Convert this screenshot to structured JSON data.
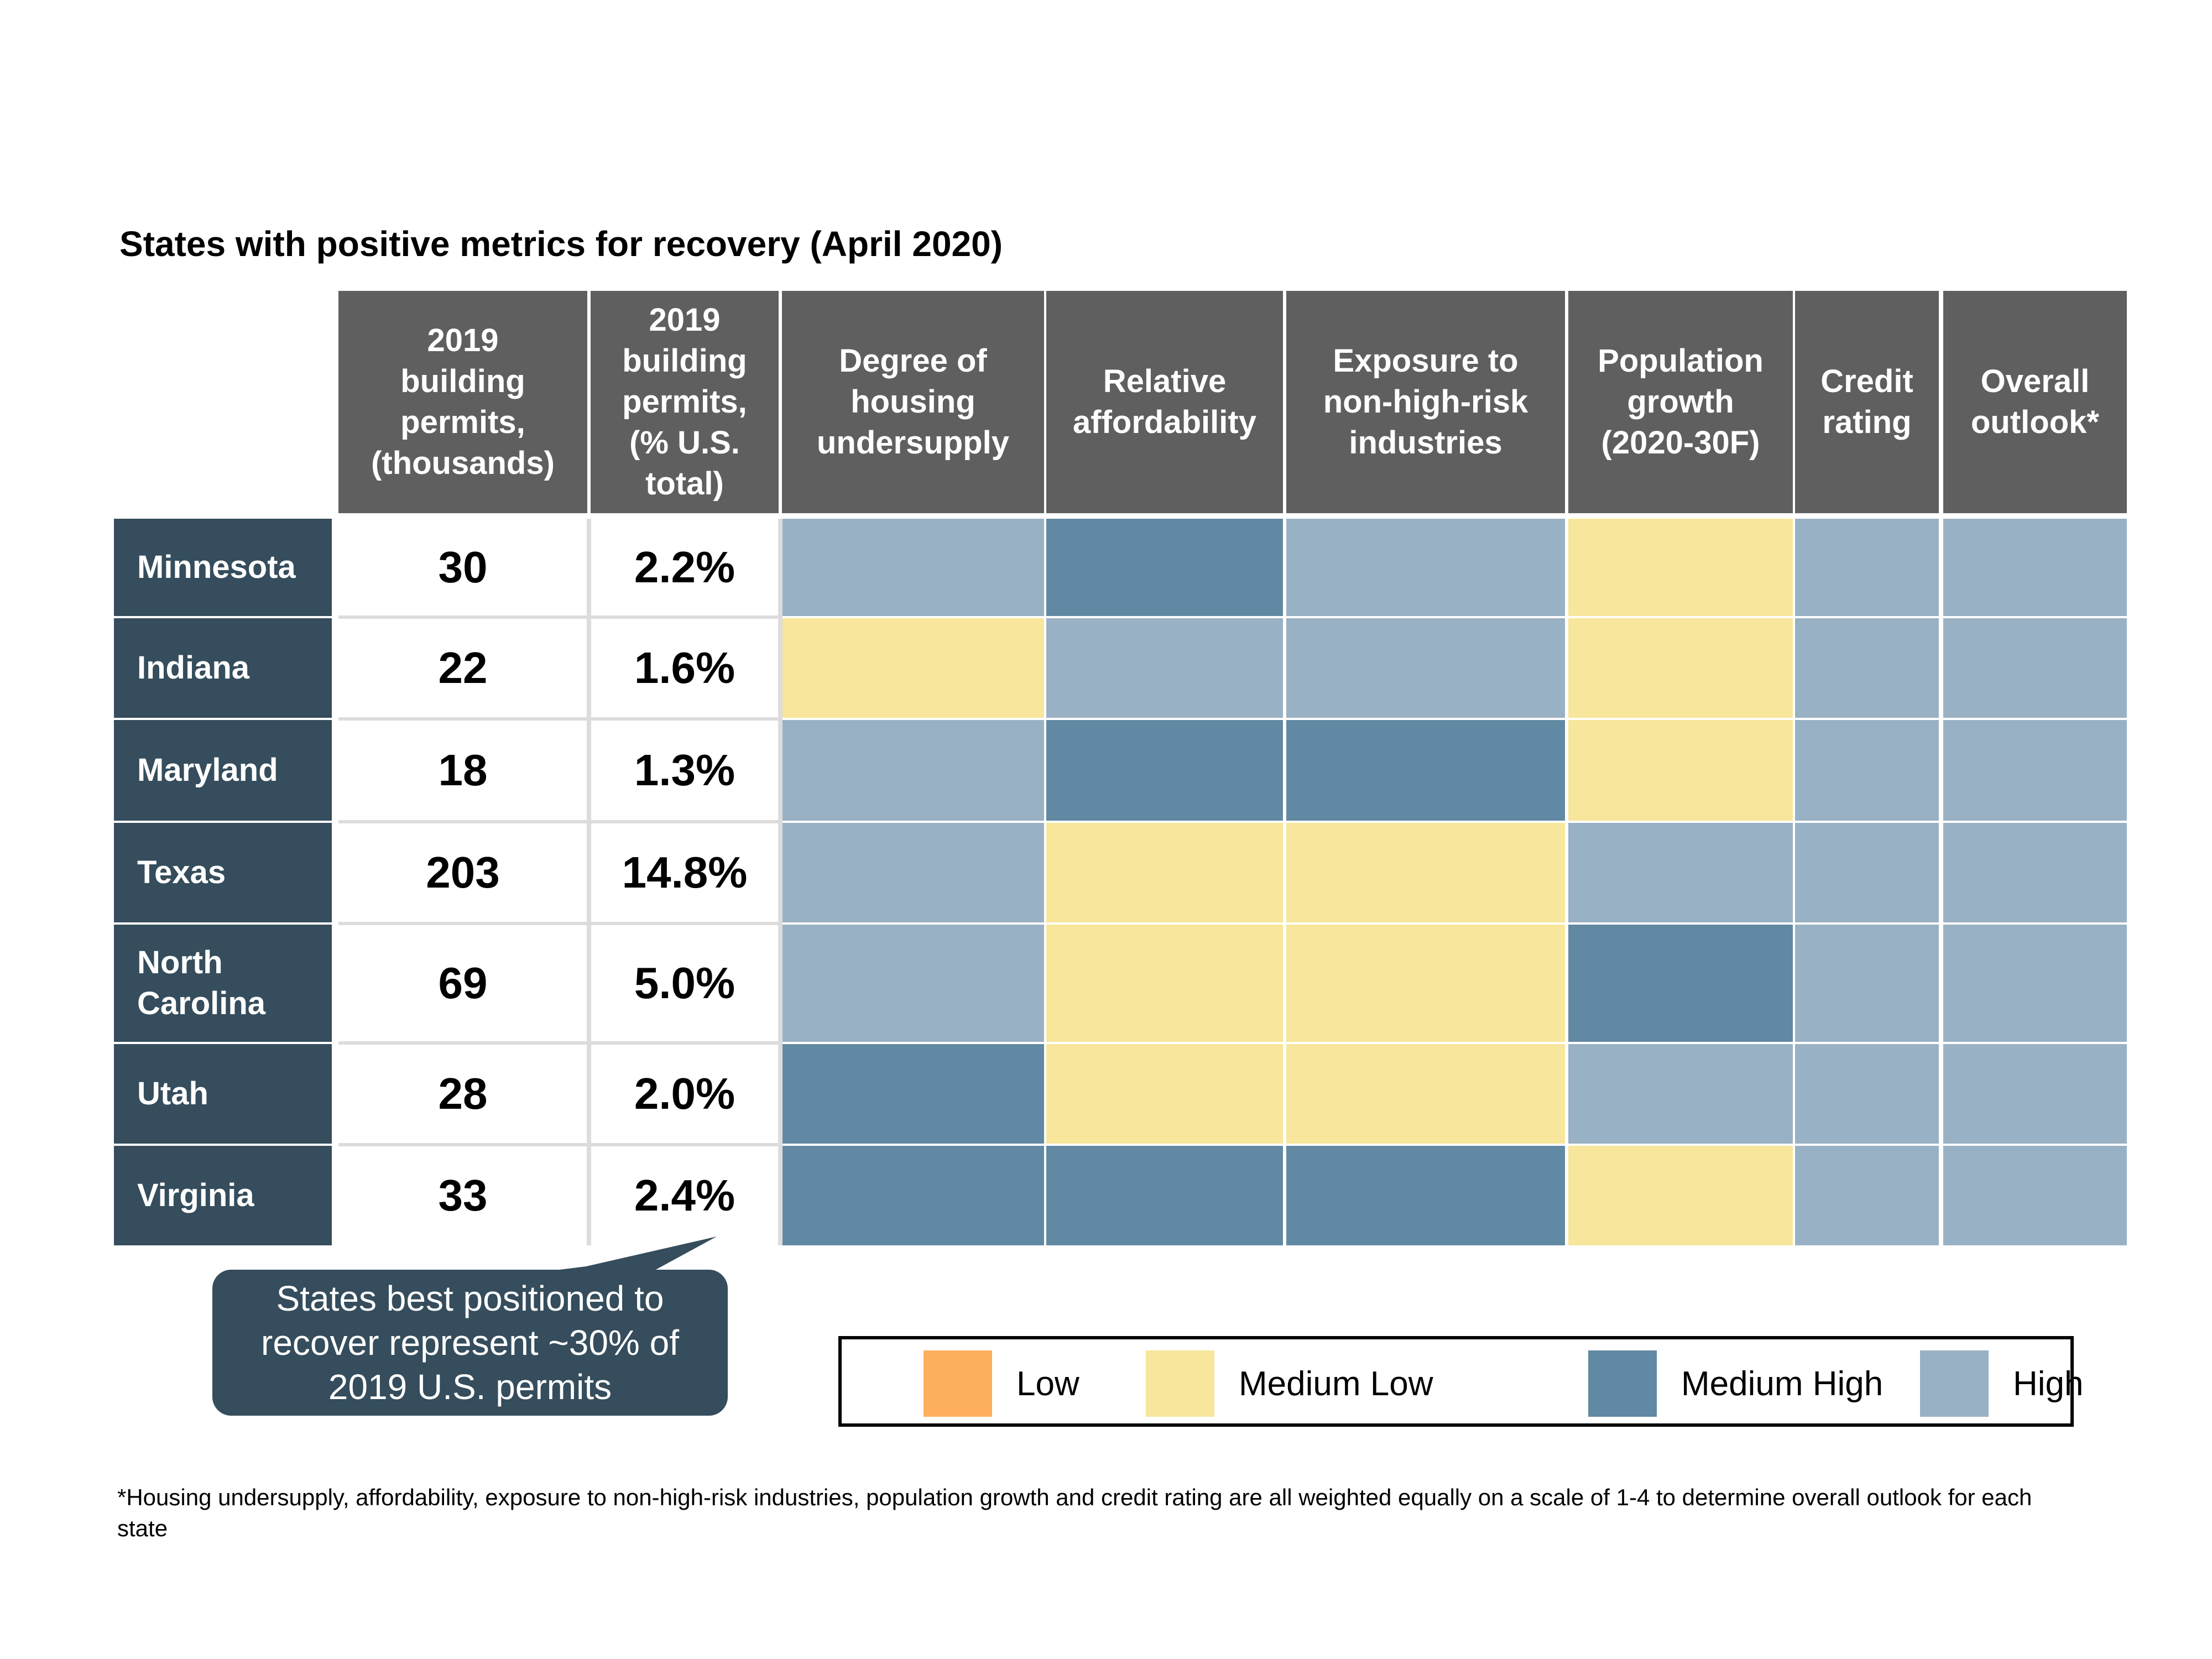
{
  "chart_data": {
    "type": "table",
    "title": "States with positive metrics for recovery (April 2020)",
    "columns": [
      "2019 building permits, (thousands)",
      "2019 building permits, (% U.S. total)",
      "Degree of housing undersupply",
      "Relative affordability",
      "Exposure to non-high-risk industries",
      "Population growth (2020-30F)",
      "Credit rating",
      "Overall outlook*"
    ],
    "column_headers": [
      [
        "2019",
        "building",
        "permits,",
        "(thousands)"
      ],
      [
        "2019",
        "building",
        "permits,",
        "(% U.S.",
        "total)"
      ],
      [
        "Degree of",
        "housing",
        "undersupply"
      ],
      [
        "Relative",
        "affordability"
      ],
      [
        "Exposure to",
        "non-high-risk",
        "industries"
      ],
      [
        "Population",
        "growth",
        "(2020-30F)"
      ],
      [
        "Credit",
        "rating"
      ],
      [
        "Overall",
        "outlook*"
      ]
    ],
    "rows": [
      {
        "state": [
          "Minnesota"
        ],
        "permits_thousands": "30",
        "permits_pct": "2.2%",
        "ratings": [
          "High",
          "Medium High",
          "High",
          "Medium Low",
          "High",
          "High"
        ]
      },
      {
        "state": [
          "Indiana"
        ],
        "permits_thousands": "22",
        "permits_pct": "1.6%",
        "ratings": [
          "Medium Low",
          "High",
          "High",
          "Medium Low",
          "High",
          "High"
        ]
      },
      {
        "state": [
          "Maryland"
        ],
        "permits_thousands": "18",
        "permits_pct": "1.3%",
        "ratings": [
          "High",
          "Medium High",
          "Medium High",
          "Medium Low",
          "High",
          "High"
        ]
      },
      {
        "state": [
          "Texas"
        ],
        "permits_thousands": "203",
        "permits_pct": "14.8%",
        "ratings": [
          "High",
          "Medium Low",
          "Medium Low",
          "High",
          "High",
          "High"
        ]
      },
      {
        "state": [
          "North",
          "Carolina"
        ],
        "permits_thousands": "69",
        "permits_pct": "5.0%",
        "ratings": [
          "High",
          "Medium Low",
          "Medium Low",
          "Medium High",
          "High",
          "High"
        ]
      },
      {
        "state": [
          "Utah"
        ],
        "permits_thousands": "28",
        "permits_pct": "2.0%",
        "ratings": [
          "Medium High",
          "Medium Low",
          "Medium Low",
          "High",
          "High",
          "High"
        ]
      },
      {
        "state": [
          "Virginia"
        ],
        "permits_thousands": "33",
        "permits_pct": "2.4%",
        "ratings": [
          "Medium High",
          "Medium High",
          "Medium High",
          "Medium Low",
          "High",
          "High"
        ]
      }
    ],
    "legend": [
      {
        "label": "Low",
        "color": "#fdae5f"
      },
      {
        "label": "Medium Low",
        "color": "#f7e69b"
      },
      {
        "label": "Medium High",
        "color": "#6289a3"
      },
      {
        "label": "High",
        "color": "#99b1c4"
      }
    ]
  },
  "callout": [
    "States best positioned to",
    "recover represent ~30% of",
    "2019 U.S. permits"
  ],
  "footnote": "*Housing undersupply, affordability, exposure to non-high-risk industries, population growth and credit rating are all weighted equally on a scale of 1-4 to determine overall outlook for each state",
  "colors": {
    "header_bg": "#5f5f5f",
    "state_bg": "#354d5c",
    "callout_bg": "#354d5c"
  }
}
